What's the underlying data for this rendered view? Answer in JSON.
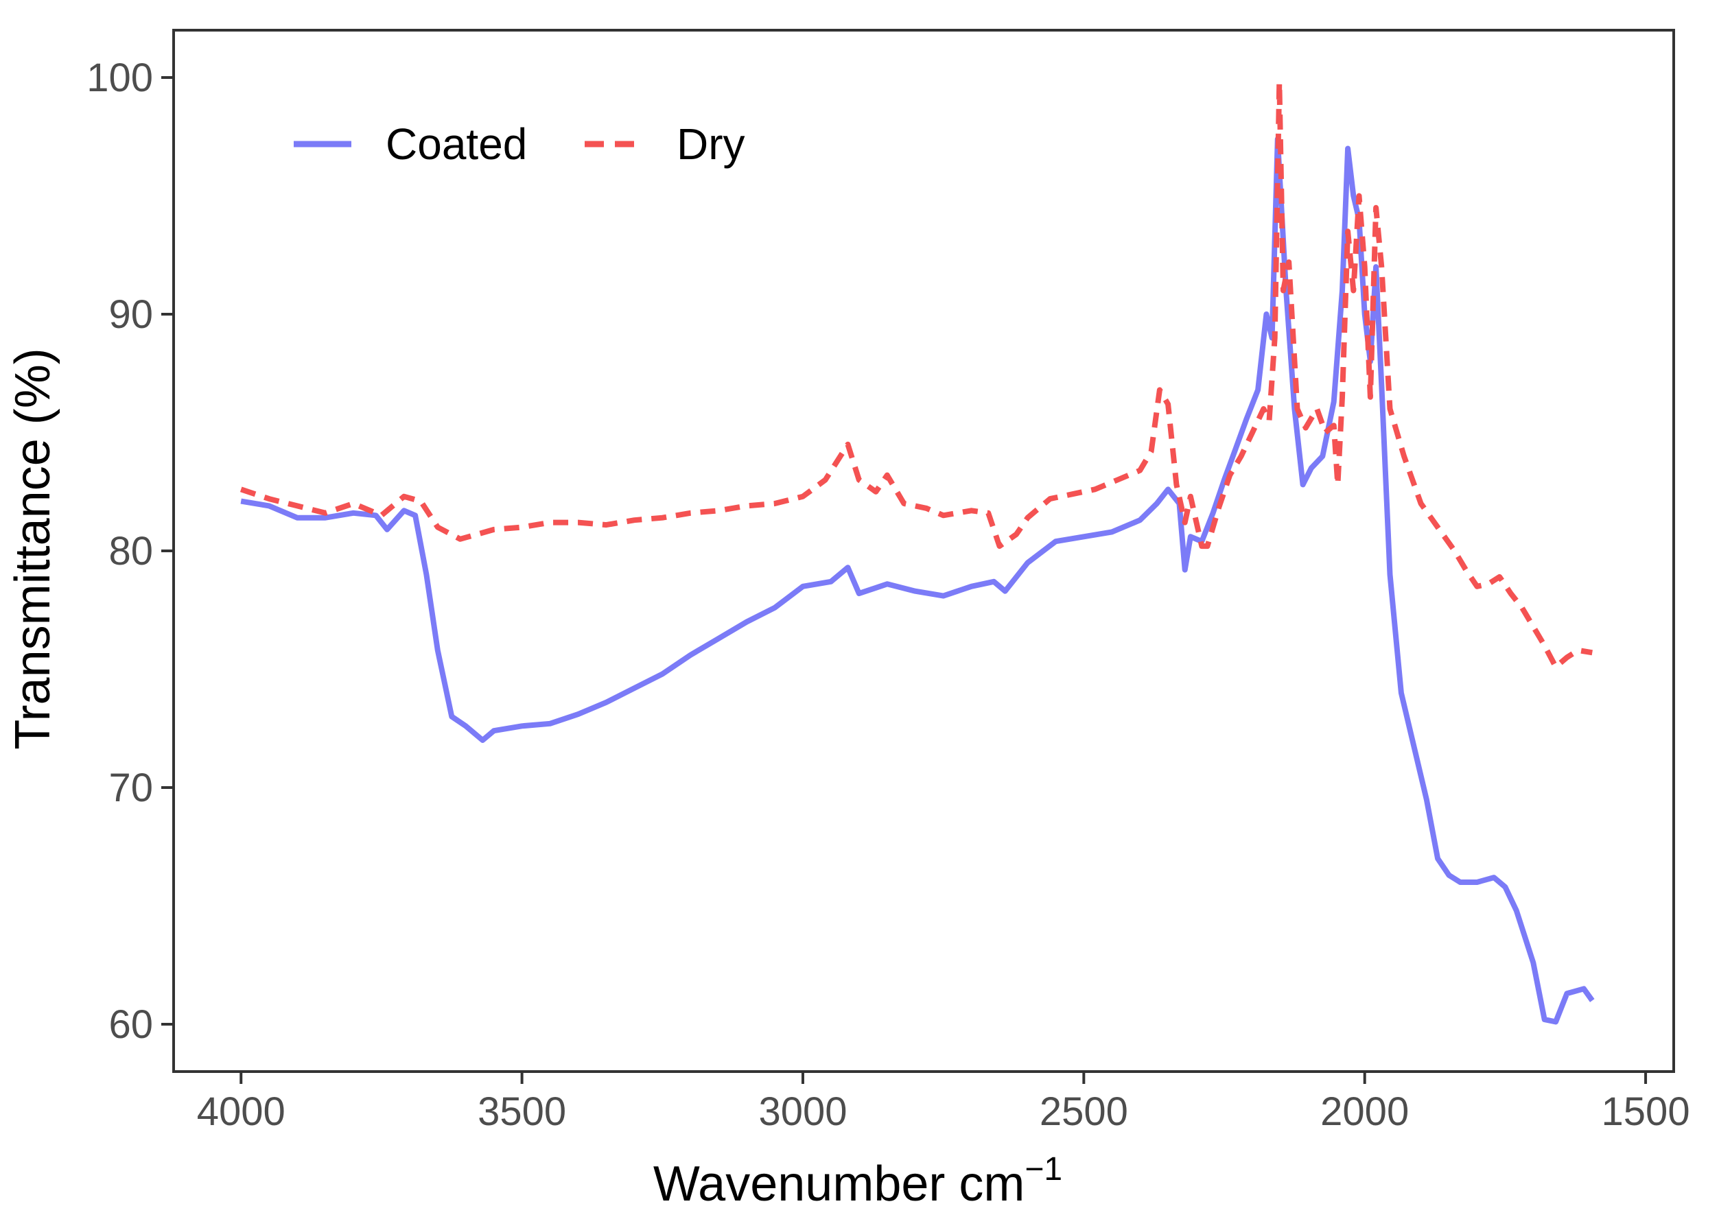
{
  "chart_data": {
    "type": "line",
    "title": "",
    "xlabel": "Wavenumber cm",
    "xlabel_superscript": "−1",
    "ylabel": "Transmittance (%)",
    "xlim": [
      4120,
      1450
    ],
    "ylim": [
      58,
      102
    ],
    "x_reversed": true,
    "grid": false,
    "legend_position": "top-left",
    "x_ticks": [
      4000,
      3500,
      3000,
      2500,
      2000,
      1500
    ],
    "x_tick_labels": [
      "4000",
      "3500",
      "3000",
      "2500",
      "2000",
      "1500"
    ],
    "y_ticks": [
      60,
      70,
      80,
      90,
      100
    ],
    "y_tick_labels": [
      "60",
      "70",
      "80",
      "90",
      "100"
    ],
    "series": [
      {
        "name": "Coated",
        "color": "#7b7bf7",
        "dash": "solid",
        "points": [
          [
            4000,
            82.1
          ],
          [
            3950,
            81.9
          ],
          [
            3900,
            81.4
          ],
          [
            3850,
            81.4
          ],
          [
            3800,
            81.6
          ],
          [
            3760,
            81.5
          ],
          [
            3740,
            80.9
          ],
          [
            3710,
            81.7
          ],
          [
            3690,
            81.5
          ],
          [
            3670,
            79.0
          ],
          [
            3650,
            75.8
          ],
          [
            3625,
            73.0
          ],
          [
            3600,
            72.6
          ],
          [
            3570,
            72.0
          ],
          [
            3550,
            72.4
          ],
          [
            3500,
            72.6
          ],
          [
            3450,
            72.7
          ],
          [
            3400,
            73.1
          ],
          [
            3350,
            73.6
          ],
          [
            3300,
            74.2
          ],
          [
            3250,
            74.8
          ],
          [
            3200,
            75.6
          ],
          [
            3150,
            76.3
          ],
          [
            3100,
            77.0
          ],
          [
            3050,
            77.6
          ],
          [
            3000,
            78.5
          ],
          [
            2950,
            78.7
          ],
          [
            2920,
            79.3
          ],
          [
            2900,
            78.2
          ],
          [
            2850,
            78.6
          ],
          [
            2800,
            78.3
          ],
          [
            2750,
            78.1
          ],
          [
            2700,
            78.5
          ],
          [
            2660,
            78.7
          ],
          [
            2640,
            78.3
          ],
          [
            2600,
            79.5
          ],
          [
            2550,
            80.4
          ],
          [
            2500,
            80.6
          ],
          [
            2450,
            80.8
          ],
          [
            2400,
            81.3
          ],
          [
            2370,
            82.0
          ],
          [
            2350,
            82.6
          ],
          [
            2330,
            82.0
          ],
          [
            2320,
            79.2
          ],
          [
            2310,
            80.6
          ],
          [
            2290,
            80.4
          ],
          [
            2270,
            81.6
          ],
          [
            2250,
            83.0
          ],
          [
            2230,
            84.3
          ],
          [
            2210,
            85.6
          ],
          [
            2190,
            86.8
          ],
          [
            2175,
            90.0
          ],
          [
            2165,
            89.0
          ],
          [
            2155,
            97.4
          ],
          [
            2140,
            91.0
          ],
          [
            2125,
            86.0
          ],
          [
            2110,
            82.8
          ],
          [
            2095,
            83.5
          ],
          [
            2075,
            84.0
          ],
          [
            2055,
            86.3
          ],
          [
            2040,
            91.0
          ],
          [
            2030,
            97.0
          ],
          [
            2020,
            95.0
          ],
          [
            2010,
            94.0
          ],
          [
            2000,
            90.0
          ],
          [
            1990,
            88.0
          ],
          [
            1980,
            92.0
          ],
          [
            1970,
            87.0
          ],
          [
            1955,
            79.0
          ],
          [
            1935,
            74.0
          ],
          [
            1910,
            71.5
          ],
          [
            1890,
            69.5
          ],
          [
            1870,
            67.0
          ],
          [
            1850,
            66.3
          ],
          [
            1830,
            66.0
          ],
          [
            1800,
            66.0
          ],
          [
            1770,
            66.2
          ],
          [
            1750,
            65.8
          ],
          [
            1730,
            64.8
          ],
          [
            1700,
            62.6
          ],
          [
            1680,
            60.2
          ],
          [
            1660,
            60.1
          ],
          [
            1640,
            61.3
          ],
          [
            1610,
            61.5
          ],
          [
            1595,
            61.0
          ]
        ]
      },
      {
        "name": "Dry",
        "color": "#f45252",
        "dash": "dashed",
        "points": [
          [
            4000,
            82.6
          ],
          [
            3950,
            82.2
          ],
          [
            3900,
            81.9
          ],
          [
            3850,
            81.6
          ],
          [
            3800,
            82.0
          ],
          [
            3750,
            81.5
          ],
          [
            3710,
            82.3
          ],
          [
            3680,
            82.1
          ],
          [
            3650,
            81.0
          ],
          [
            3610,
            80.5
          ],
          [
            3550,
            80.9
          ],
          [
            3500,
            81.0
          ],
          [
            3450,
            81.2
          ],
          [
            3400,
            81.2
          ],
          [
            3350,
            81.1
          ],
          [
            3300,
            81.3
          ],
          [
            3250,
            81.4
          ],
          [
            3200,
            81.6
          ],
          [
            3150,
            81.7
          ],
          [
            3100,
            81.9
          ],
          [
            3050,
            82.0
          ],
          [
            3000,
            82.3
          ],
          [
            2960,
            83.0
          ],
          [
            2920,
            84.5
          ],
          [
            2900,
            83.0
          ],
          [
            2870,
            82.5
          ],
          [
            2850,
            83.2
          ],
          [
            2820,
            82.0
          ],
          [
            2780,
            81.8
          ],
          [
            2750,
            81.5
          ],
          [
            2700,
            81.7
          ],
          [
            2670,
            81.6
          ],
          [
            2650,
            80.2
          ],
          [
            2620,
            80.7
          ],
          [
            2600,
            81.4
          ],
          [
            2560,
            82.2
          ],
          [
            2520,
            82.4
          ],
          [
            2480,
            82.6
          ],
          [
            2440,
            83.0
          ],
          [
            2400,
            83.4
          ],
          [
            2380,
            84.2
          ],
          [
            2365,
            86.8
          ],
          [
            2350,
            86.2
          ],
          [
            2335,
            82.8
          ],
          [
            2320,
            81.2
          ],
          [
            2310,
            82.3
          ],
          [
            2290,
            80.2
          ],
          [
            2280,
            80.2
          ],
          [
            2260,
            81.8
          ],
          [
            2240,
            83.2
          ],
          [
            2220,
            84.0
          ],
          [
            2200,
            85.0
          ],
          [
            2180,
            86.0
          ],
          [
            2170,
            85.5
          ],
          [
            2160,
            89.0
          ],
          [
            2152,
            99.8
          ],
          [
            2145,
            91.0
          ],
          [
            2135,
            92.2
          ],
          [
            2120,
            86.0
          ],
          [
            2105,
            85.2
          ],
          [
            2085,
            86.0
          ],
          [
            2070,
            85.0
          ],
          [
            2055,
            85.3
          ],
          [
            2048,
            82.8
          ],
          [
            2040,
            86.5
          ],
          [
            2030,
            93.5
          ],
          [
            2020,
            91.0
          ],
          [
            2010,
            95.0
          ],
          [
            2000,
            92.0
          ],
          [
            1990,
            86.5
          ],
          [
            1980,
            94.5
          ],
          [
            1970,
            92.0
          ],
          [
            1955,
            86.0
          ],
          [
            1930,
            84.0
          ],
          [
            1900,
            82.0
          ],
          [
            1870,
            81.0
          ],
          [
            1840,
            80.0
          ],
          [
            1820,
            79.2
          ],
          [
            1800,
            78.5
          ],
          [
            1780,
            78.6
          ],
          [
            1760,
            78.9
          ],
          [
            1740,
            78.2
          ],
          [
            1720,
            77.6
          ],
          [
            1700,
            76.8
          ],
          [
            1680,
            76.0
          ],
          [
            1660,
            75.1
          ],
          [
            1640,
            75.5
          ],
          [
            1620,
            75.8
          ],
          [
            1595,
            75.7
          ]
        ]
      }
    ]
  }
}
